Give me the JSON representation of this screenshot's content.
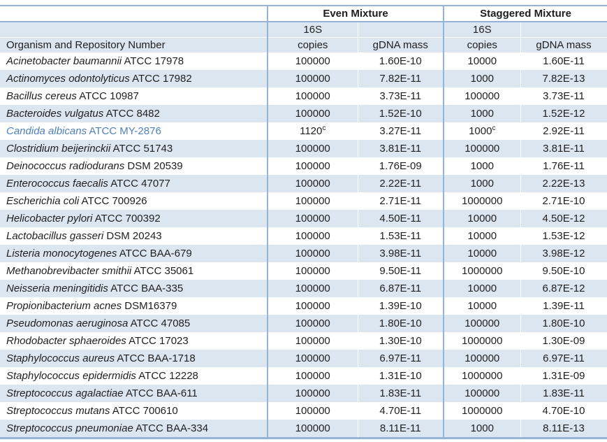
{
  "table": {
    "col1_header": "Organism and Repository Number",
    "groups": {
      "even": "Even Mixture",
      "staggered": "Staggered Mixture"
    },
    "subheaders": {
      "copies_line1": "16S",
      "copies_line2": "copies",
      "mass": "gDNA mass"
    },
    "colors": {
      "stripe": "#dce6f1",
      "border": "#95b3d7",
      "highlight_text": "#4f81bd"
    },
    "rows": [
      {
        "organism": "Acinetobacter baumannii",
        "repo": "ATCC 17978",
        "even_copies": "100000",
        "even_copies_sup": "",
        "even_mass": "1.60E-10",
        "stag_copies": "10000",
        "stag_copies_sup": "",
        "stag_mass": "1.60E-11",
        "highlight": false
      },
      {
        "organism": "Actinomyces odontolyticus",
        "repo": "ATCC 17982",
        "even_copies": "100000",
        "even_copies_sup": "",
        "even_mass": "7.82E-11",
        "stag_copies": "1000",
        "stag_copies_sup": "",
        "stag_mass": "7.82E-13",
        "highlight": false
      },
      {
        "organism": "Bacillus cereus",
        "repo": "ATCC 10987",
        "even_copies": "100000",
        "even_copies_sup": "",
        "even_mass": "3.73E-11",
        "stag_copies": "100000",
        "stag_copies_sup": "",
        "stag_mass": "3.73E-11",
        "highlight": false
      },
      {
        "organism": "Bacteroides vulgatus",
        "repo": "ATCC 8482",
        "even_copies": "100000",
        "even_copies_sup": "",
        "even_mass": "1.52E-10",
        "stag_copies": "1000",
        "stag_copies_sup": "",
        "stag_mass": "1.52E-12",
        "highlight": false
      },
      {
        "organism": "Candida albicans",
        "repo": "ATCC MY-2876",
        "even_copies": "1120",
        "even_copies_sup": "c",
        "even_mass": "3.27E-11",
        "stag_copies": "1000",
        "stag_copies_sup": "c",
        "stag_mass": "2.92E-11",
        "highlight": true
      },
      {
        "organism": "Clostridium beijerinckii",
        "repo": "ATCC 51743",
        "even_copies": "100000",
        "even_copies_sup": "",
        "even_mass": "3.81E-11",
        "stag_copies": "100000",
        "stag_copies_sup": "",
        "stag_mass": "3.81E-11",
        "highlight": false
      },
      {
        "organism": "Deinococcus radiodurans",
        "repo": "DSM 20539",
        "even_copies": "100000",
        "even_copies_sup": "",
        "even_mass": "1.76E-09",
        "stag_copies": "1000",
        "stag_copies_sup": "",
        "stag_mass": "1.76E-11",
        "highlight": false
      },
      {
        "organism": "Enterococcus faecalis",
        "repo": "ATCC 47077",
        "even_copies": "100000",
        "even_copies_sup": "",
        "even_mass": "2.22E-11",
        "stag_copies": "1000",
        "stag_copies_sup": "",
        "stag_mass": "2.22E-13",
        "highlight": false
      },
      {
        "organism": "Escherichia coli",
        "repo": "ATCC 700926",
        "even_copies": "100000",
        "even_copies_sup": "",
        "even_mass": "2.71E-11",
        "stag_copies": "1000000",
        "stag_copies_sup": "",
        "stag_mass": "2.71E-10",
        "highlight": false
      },
      {
        "organism": "Helicobacter pylori",
        "repo": "ATCC 700392",
        "even_copies": "100000",
        "even_copies_sup": "",
        "even_mass": "4.50E-11",
        "stag_copies": "10000",
        "stag_copies_sup": "",
        "stag_mass": "4.50E-12",
        "highlight": false
      },
      {
        "organism": "Lactobacillus gasseri",
        "repo": "DSM 20243",
        "even_copies": "100000",
        "even_copies_sup": "",
        "even_mass": "1.53E-11",
        "stag_copies": "10000",
        "stag_copies_sup": "",
        "stag_mass": "1.53E-12",
        "highlight": false
      },
      {
        "organism": "Listeria monocytogenes",
        "repo": "ATCC BAA-679",
        "even_copies": "100000",
        "even_copies_sup": "",
        "even_mass": "3.98E-11",
        "stag_copies": "10000",
        "stag_copies_sup": "",
        "stag_mass": "3.98E-12",
        "highlight": false
      },
      {
        "organism": "Methanobrevibacter smithii",
        "repo": "ATCC 35061",
        "even_copies": "100000",
        "even_copies_sup": "",
        "even_mass": "9.50E-11",
        "stag_copies": "1000000",
        "stag_copies_sup": "",
        "stag_mass": "9.50E-10",
        "highlight": false
      },
      {
        "organism": "Neisseria meningitidis",
        "repo": "ATCC BAA-335",
        "even_copies": "100000",
        "even_copies_sup": "",
        "even_mass": "6.87E-11",
        "stag_copies": "10000",
        "stag_copies_sup": "",
        "stag_mass": "6.87E-12",
        "highlight": false
      },
      {
        "organism": "Propionibacterium acnes",
        "repo": "DSM16379",
        "even_copies": "100000",
        "even_copies_sup": "",
        "even_mass": "1.39E-10",
        "stag_copies": "10000",
        "stag_copies_sup": "",
        "stag_mass": "1.39E-11",
        "highlight": false
      },
      {
        "organism": "Pseudomonas aeruginosa",
        "repo": "ATCC 47085",
        "even_copies": "100000",
        "even_copies_sup": "",
        "even_mass": "1.80E-10",
        "stag_copies": "100000",
        "stag_copies_sup": "",
        "stag_mass": "1.80E-10",
        "highlight": false
      },
      {
        "organism": "Rhodobacter sphaeroides",
        "repo": "ATCC 17023",
        "even_copies": "100000",
        "even_copies_sup": "",
        "even_mass": "1.30E-10",
        "stag_copies": "1000000",
        "stag_copies_sup": "",
        "stag_mass": "1.30E-09",
        "highlight": false
      },
      {
        "organism": "Staphylococcus aureus",
        "repo": "ATCC BAA-1718",
        "even_copies": "100000",
        "even_copies_sup": "",
        "even_mass": "6.97E-11",
        "stag_copies": "100000",
        "stag_copies_sup": "",
        "stag_mass": "6.97E-11",
        "highlight": false
      },
      {
        "organism": "Staphylococcus epidermidis",
        "repo": "ATCC 12228",
        "even_copies": "100000",
        "even_copies_sup": "",
        "even_mass": "1.31E-10",
        "stag_copies": "1000000",
        "stag_copies_sup": "",
        "stag_mass": "1.31E-09",
        "highlight": false
      },
      {
        "organism": "Streptococcus agalactiae",
        "repo": "ATCC BAA-611",
        "even_copies": "100000",
        "even_copies_sup": "",
        "even_mass": "1.83E-11",
        "stag_copies": "100000",
        "stag_copies_sup": "",
        "stag_mass": "1.83E-11",
        "highlight": false
      },
      {
        "organism": "Streptococcus mutans",
        "repo": "ATCC 700610",
        "even_copies": "100000",
        "even_copies_sup": "",
        "even_mass": "4.70E-11",
        "stag_copies": "1000000",
        "stag_copies_sup": "",
        "stag_mass": "4.70E-10",
        "highlight": false
      },
      {
        "organism": "Streptococcus pneumoniae",
        "repo": "ATCC BAA-334",
        "even_copies": "100000",
        "even_copies_sup": "",
        "even_mass": "8.11E-11",
        "stag_copies": "1000",
        "stag_copies_sup": "",
        "stag_mass": "8.11E-13",
        "highlight": false
      }
    ]
  }
}
